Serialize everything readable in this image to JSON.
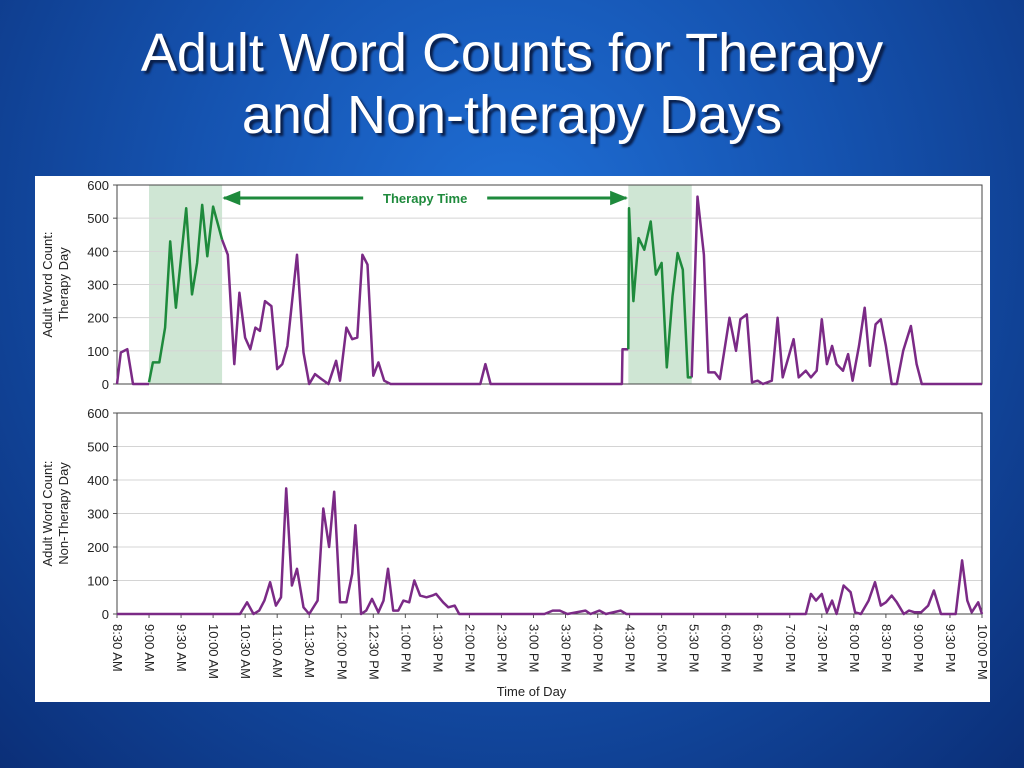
{
  "title_lines": [
    "Adult Word Counts for Therapy",
    "and Non-therapy Days"
  ],
  "chart_data": [
    {
      "type": "line",
      "ylabel": [
        "Adult Word Count:",
        "Therapy Day"
      ],
      "xlim": [
        8.5,
        22
      ],
      "ylim": [
        0,
        600
      ],
      "yticks": [
        0,
        100,
        200,
        300,
        400,
        500,
        600
      ],
      "grid": true,
      "shaded_ranges": [
        [
          9.0,
          10.14
        ],
        [
          16.48,
          17.47
        ]
      ],
      "shade_color": "#cfe6d4",
      "annotation": "Therapy Time",
      "annotation_color": "#1e8a3c",
      "series": [
        {
          "color": "#7b2a86",
          "x": [
            8.5,
            8.56,
            8.66,
            8.75,
            8.91,
            9.0,
            null,
            10.14,
            10.23,
            10.33,
            10.41,
            10.5,
            10.58,
            10.66,
            10.73,
            10.81,
            10.91,
            11.0,
            11.08,
            11.16,
            11.31,
            11.41,
            11.5,
            11.59,
            11.69,
            11.8,
            11.92,
            11.98,
            12.08,
            12.17,
            12.25,
            12.33,
            12.41,
            12.5,
            12.58,
            12.67,
            12.77,
            14.17,
            14.25,
            14.33,
            16.38,
            16.39,
            16.47,
            16.48,
            null,
            17.47,
            17.56,
            17.66,
            17.73,
            17.83,
            17.91,
            18.06,
            18.16,
            18.23,
            18.33,
            18.41,
            18.5,
            18.58,
            18.72,
            18.81,
            18.89,
            19.06,
            19.14,
            19.25,
            19.33,
            19.42,
            19.5,
            19.58,
            19.66,
            19.73,
            19.83,
            19.91,
            19.98,
            20.08,
            20.17,
            20.25,
            20.34,
            20.42,
            20.5,
            20.59,
            20.67,
            20.77,
            20.89,
            20.98,
            21.06,
            22.0
          ],
          "values": [
            0,
            95,
            105,
            0,
            0,
            0,
            null,
            435,
            390,
            60,
            275,
            140,
            105,
            170,
            160,
            250,
            235,
            45,
            60,
            115,
            390,
            95,
            0,
            30,
            15,
            0,
            70,
            10,
            170,
            135,
            140,
            390,
            360,
            25,
            65,
            10,
            0,
            0,
            60,
            0,
            0,
            105,
            105,
            105,
            null,
            20,
            565,
            390,
            35,
            35,
            15,
            200,
            100,
            195,
            210,
            5,
            10,
            0,
            10,
            200,
            20,
            135,
            20,
            40,
            20,
            40,
            195,
            60,
            115,
            60,
            40,
            90,
            10,
            115,
            230,
            55,
            180,
            195,
            115,
            0,
            0,
            100,
            175,
            60,
            0,
            0
          ]
        },
        {
          "color": "#1e8a3c",
          "x": [
            9.0,
            9.06,
            9.16,
            9.25,
            9.33,
            9.42,
            9.58,
            9.67,
            9.75,
            9.83,
            9.91,
            10.0,
            10.14,
            null,
            16.48,
            16.49,
            16.56,
            16.64,
            16.73,
            16.83,
            16.91,
            17.0,
            17.08,
            17.17,
            17.25,
            17.33,
            17.41,
            17.47
          ],
          "values": [
            5,
            65,
            65,
            170,
            430,
            230,
            530,
            270,
            365,
            540,
            385,
            535,
            435,
            null,
            105,
            530,
            250,
            440,
            405,
            490,
            330,
            365,
            50,
            265,
            395,
            345,
            20,
            20
          ]
        }
      ]
    },
    {
      "type": "line",
      "ylabel": [
        "Adult Word Count:",
        "Non-Therapy Day"
      ],
      "xlabel": "Time of Day",
      "xlim": [
        8.5,
        22
      ],
      "ylim": [
        0,
        600
      ],
      "yticks": [
        0,
        100,
        200,
        300,
        400,
        500,
        600
      ],
      "grid": true,
      "xticks": [
        {
          "value": 8.5,
          "label": "8:30 AM"
        },
        {
          "value": 9,
          "label": "9:00 AM"
        },
        {
          "value": 9.5,
          "label": "9:30 AM"
        },
        {
          "value": 10,
          "label": "10:00 AM"
        },
        {
          "value": 10.5,
          "label": "10:30 AM"
        },
        {
          "value": 11,
          "label": "11:00 AM"
        },
        {
          "value": 11.5,
          "label": "11:30 AM"
        },
        {
          "value": 12,
          "label": "12:00 PM"
        },
        {
          "value": 12.5,
          "label": "12:30 PM"
        },
        {
          "value": 13,
          "label": "1:00 PM"
        },
        {
          "value": 13.5,
          "label": "1:30 PM"
        },
        {
          "value": 14,
          "label": "2:00 PM"
        },
        {
          "value": 14.5,
          "label": "2:30 PM"
        },
        {
          "value": 15,
          "label": "3:00 PM"
        },
        {
          "value": 15.5,
          "label": "3:30 PM"
        },
        {
          "value": 16,
          "label": "4:00 PM"
        },
        {
          "value": 16.5,
          "label": "4:30 PM"
        },
        {
          "value": 17,
          "label": "5:00 PM"
        },
        {
          "value": 17.5,
          "label": "5:30 PM"
        },
        {
          "value": 18,
          "label": "6:00 PM"
        },
        {
          "value": 18.5,
          "label": "6:30 PM"
        },
        {
          "value": 19,
          "label": "7:00 PM"
        },
        {
          "value": 19.5,
          "label": "7:30 PM"
        },
        {
          "value": 20,
          "label": "8:00 PM"
        },
        {
          "value": 20.5,
          "label": "8:30 PM"
        },
        {
          "value": 21,
          "label": "9:00 PM"
        },
        {
          "value": 21.5,
          "label": "9:30 PM"
        },
        {
          "value": 22,
          "label": "10:00 PM"
        }
      ],
      "series": [
        {
          "color": "#7b2a86",
          "x": [
            8.5,
            10.42,
            10.53,
            10.63,
            10.72,
            10.8,
            10.89,
            10.98,
            11.06,
            11.14,
            11.23,
            11.31,
            11.41,
            11.5,
            11.63,
            11.72,
            11.81,
            11.89,
            11.98,
            12.08,
            12.17,
            12.22,
            12.31,
            12.39,
            12.48,
            12.58,
            12.66,
            12.73,
            12.81,
            12.89,
            12.97,
            13.06,
            13.14,
            13.23,
            13.33,
            13.42,
            13.48,
            13.59,
            13.67,
            13.77,
            13.84,
            15.17,
            15.3,
            15.41,
            15.53,
            15.81,
            15.89,
            16.03,
            16.13,
            16.36,
            16.45,
            19.25,
            19.33,
            19.41,
            19.5,
            19.58,
            19.66,
            19.73,
            19.84,
            19.95,
            20.02,
            20.11,
            20.23,
            20.33,
            20.42,
            20.5,
            20.59,
            20.67,
            20.78,
            20.86,
            20.95,
            21.05,
            21.16,
            21.25,
            21.36,
            21.59,
            21.69,
            21.77,
            21.84,
            21.94,
            22.0
          ],
          "values": [
            0,
            0,
            35,
            0,
            10,
            40,
            95,
            25,
            50,
            375,
            85,
            135,
            20,
            0,
            40,
            315,
            200,
            365,
            35,
            35,
            120,
            265,
            0,
            10,
            45,
            5,
            40,
            135,
            10,
            10,
            40,
            35,
            100,
            55,
            50,
            55,
            60,
            35,
            20,
            25,
            0,
            0,
            10,
            10,
            0,
            10,
            0,
            10,
            0,
            10,
            0,
            0,
            60,
            40,
            60,
            5,
            40,
            0,
            85,
            65,
            5,
            0,
            40,
            95,
            25,
            35,
            55,
            35,
            0,
            10,
            5,
            5,
            25,
            70,
            0,
            0,
            160,
            40,
            5,
            35,
            0
          ]
        }
      ]
    }
  ]
}
